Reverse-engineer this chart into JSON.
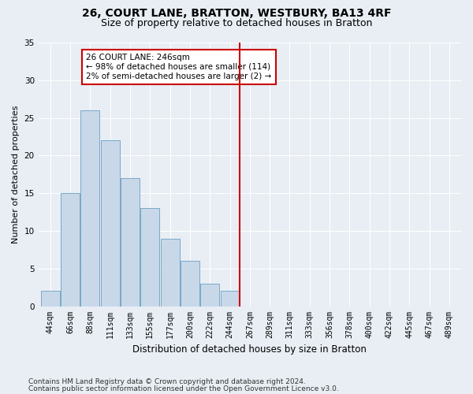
{
  "title": "26, COURT LANE, BRATTON, WESTBURY, BA13 4RF",
  "subtitle": "Size of property relative to detached houses in Bratton",
  "xlabel": "Distribution of detached houses by size in Bratton",
  "ylabel": "Number of detached properties",
  "bin_labels": [
    "44sqm",
    "66sqm",
    "88sqm",
    "111sqm",
    "133sqm",
    "155sqm",
    "177sqm",
    "200sqm",
    "222sqm",
    "244sqm",
    "267sqm",
    "289sqm",
    "311sqm",
    "333sqm",
    "356sqm",
    "378sqm",
    "400sqm",
    "422sqm",
    "445sqm",
    "467sqm",
    "489sqm"
  ],
  "bar_values": [
    2,
    15,
    26,
    22,
    17,
    13,
    9,
    6,
    3,
    2,
    0,
    0,
    0,
    0,
    0,
    0,
    0,
    0,
    0,
    0,
    0
  ],
  "bar_color": "#c8d8e8",
  "bar_edgecolor": "#7aa8c8",
  "vline_x": 9.5,
  "vline_color": "#cc0000",
  "annotation_text": "26 COURT LANE: 246sqm\n← 98% of detached houses are smaller (114)\n2% of semi-detached houses are larger (2) →",
  "annotation_box_color": "#cc0000",
  "ylim": [
    0,
    35
  ],
  "yticks": [
    0,
    5,
    10,
    15,
    20,
    25,
    30,
    35
  ],
  "background_color": "#e8eef4",
  "plot_bg_color": "#e8eef4",
  "footer_line1": "Contains HM Land Registry data © Crown copyright and database right 2024.",
  "footer_line2": "Contains public sector information licensed under the Open Government Licence v3.0.",
  "title_fontsize": 10,
  "subtitle_fontsize": 9,
  "xlabel_fontsize": 8.5,
  "ylabel_fontsize": 8,
  "tick_fontsize": 7,
  "annotation_fontsize": 7.5,
  "footer_fontsize": 6.5
}
